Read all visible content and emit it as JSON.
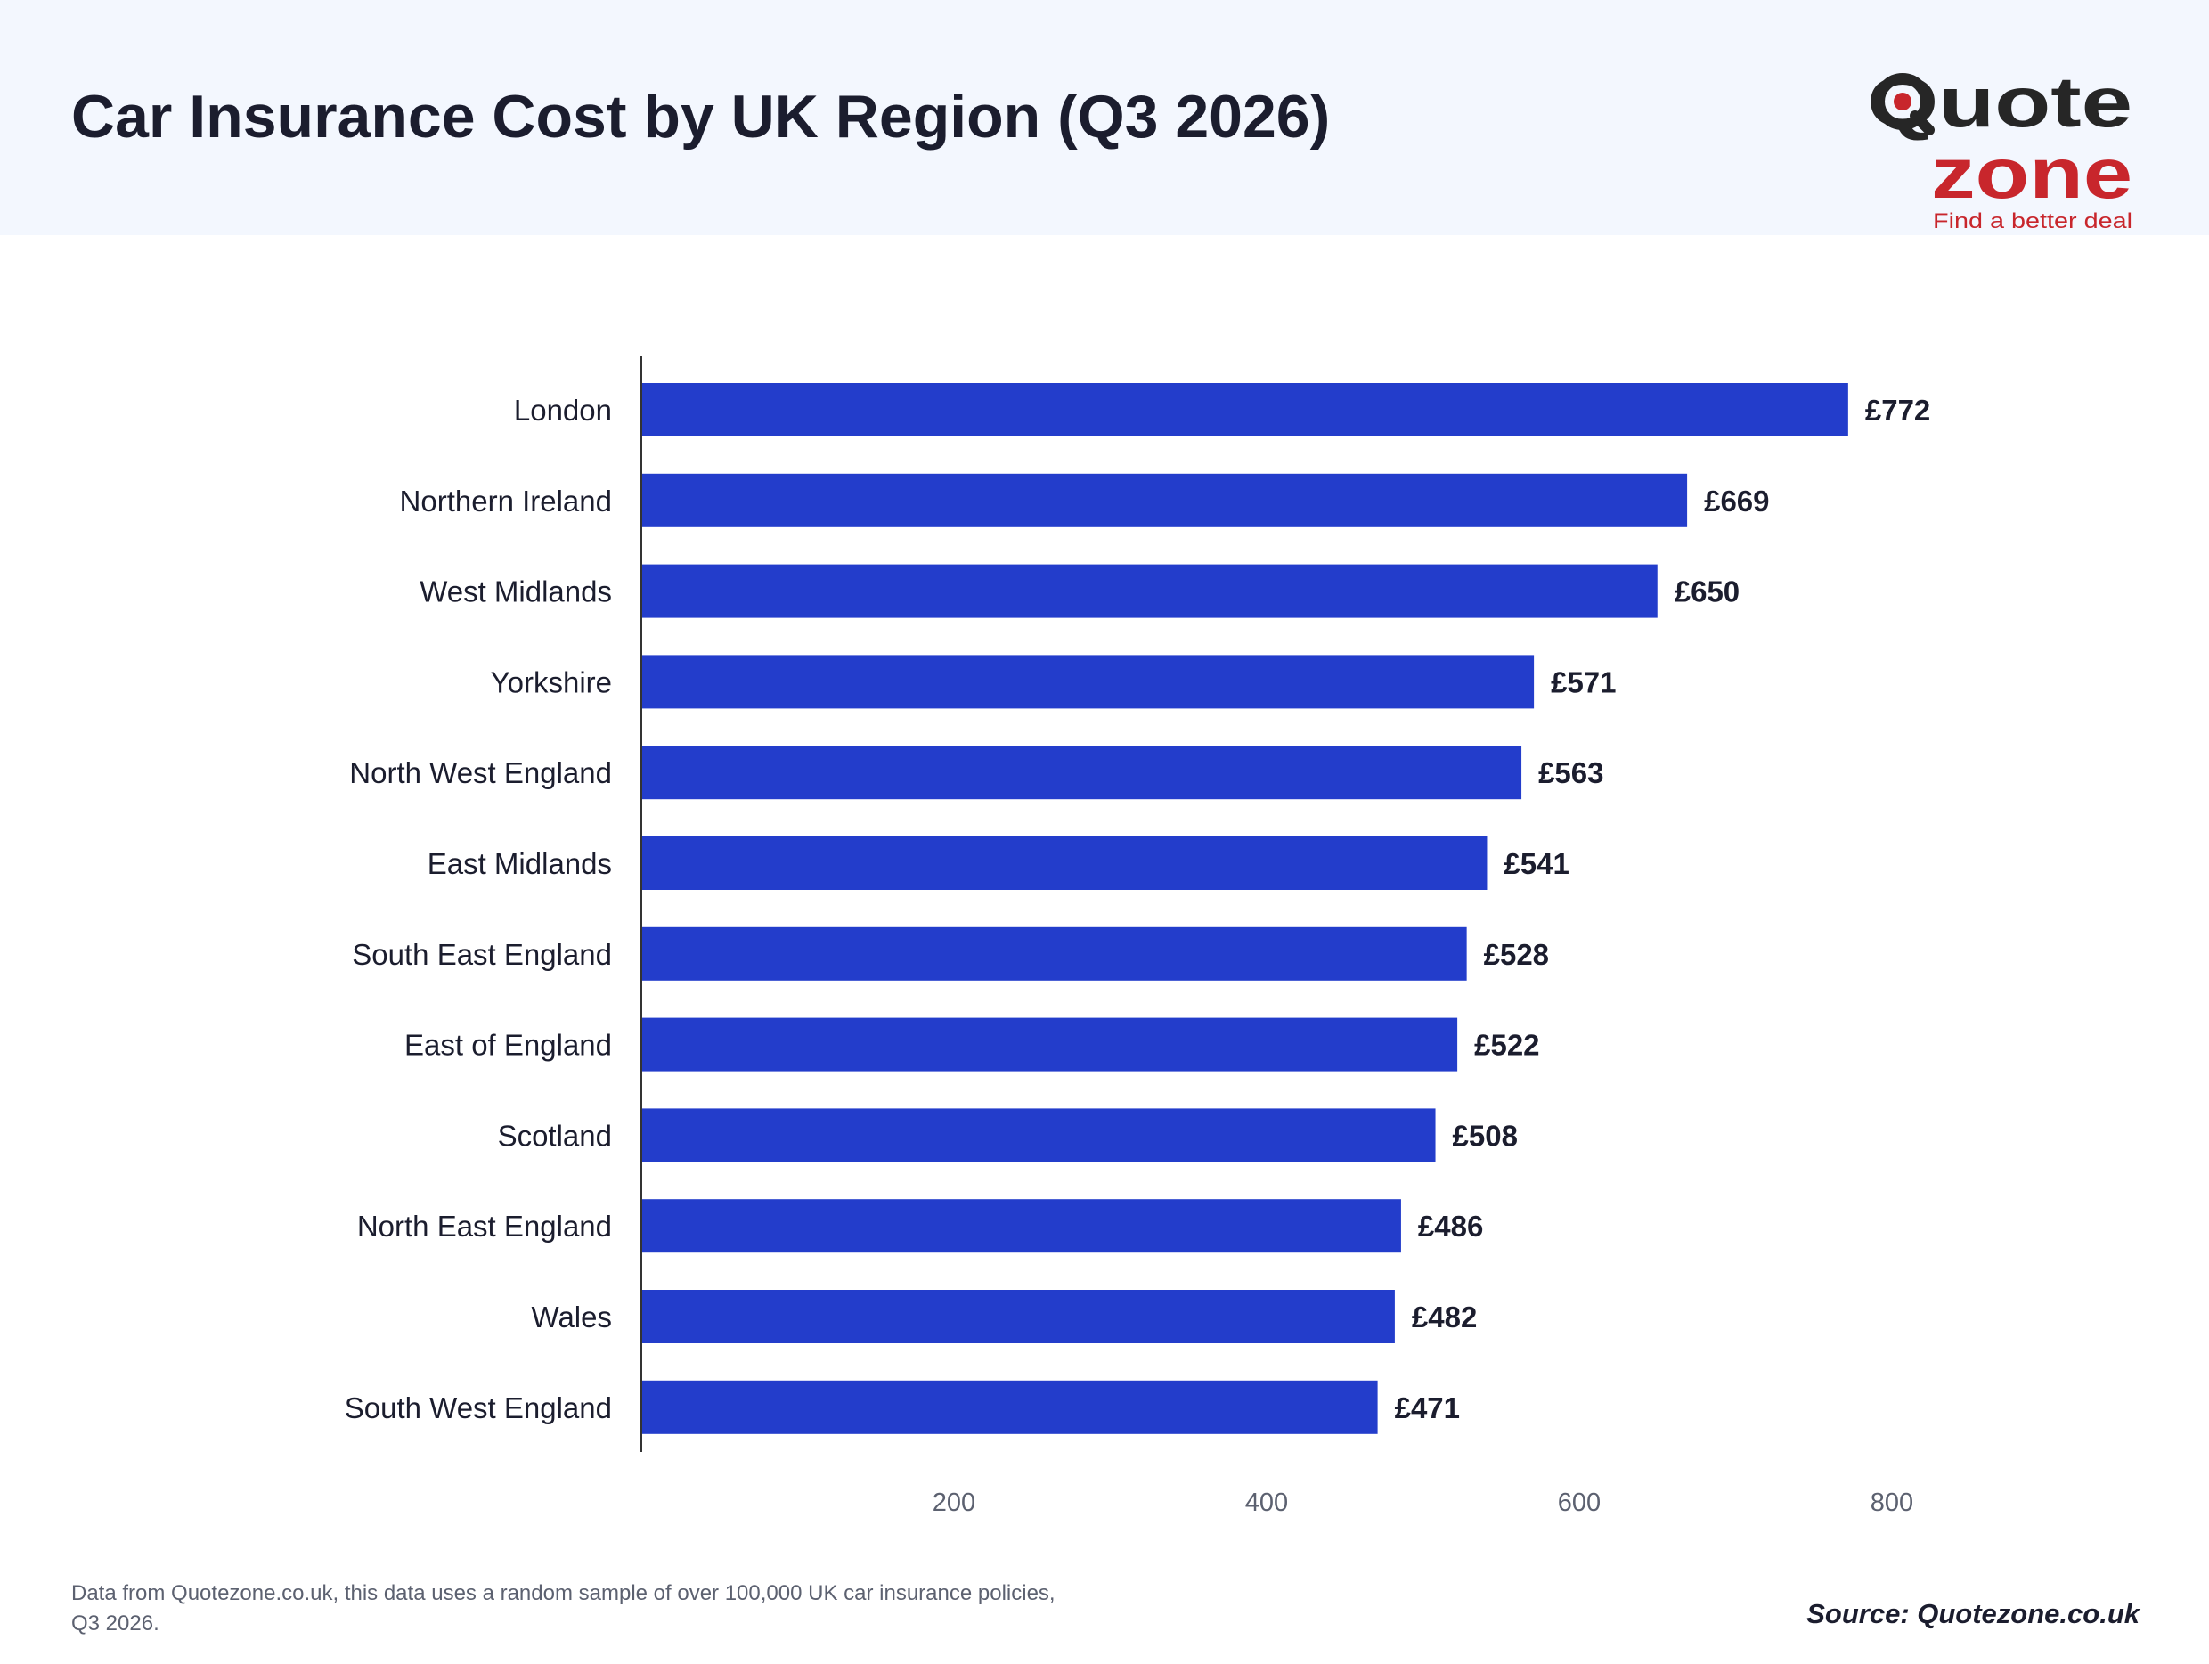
{
  "header": {
    "title": "Car Insurance Cost by UK Region (Q3 2026)"
  },
  "logo": {
    "word_top": "Quote",
    "word_bottom": "zone",
    "tagline": "Find a better deal",
    "colors": {
      "dark": "#262626",
      "red": "#c8262c"
    }
  },
  "chart_data": {
    "type": "bar",
    "orientation": "horizontal",
    "categories": [
      "London",
      "Northern Ireland",
      "West Midlands",
      "Yorkshire",
      "North West England",
      "East Midlands",
      "South East England",
      "East of England",
      "Scotland",
      "North East England",
      "Wales",
      "South West England"
    ],
    "values": [
      772,
      669,
      650,
      571,
      563,
      541,
      528,
      522,
      508,
      486,
      482,
      471
    ],
    "value_labels": [
      "£772",
      "£669",
      "£650",
      "£571",
      "£563",
      "£541",
      "£528",
      "£522",
      "£508",
      "£486",
      "£482",
      "£471"
    ],
    "x_ticks": [
      200,
      400,
      600,
      800
    ],
    "xlim": [
      0,
      900
    ],
    "title": "Car Insurance Cost by UK Region (Q3 2026)",
    "xlabel": "",
    "ylabel": "",
    "grid": false,
    "legend": "none",
    "bar_color": "#233dcb"
  },
  "footer": {
    "note": "Data from Quotezone.co.uk, this data uses a random sample of over 100,000 UK car insurance policies, Q3 2026.",
    "source": "Source: Quotezone.co.uk"
  }
}
